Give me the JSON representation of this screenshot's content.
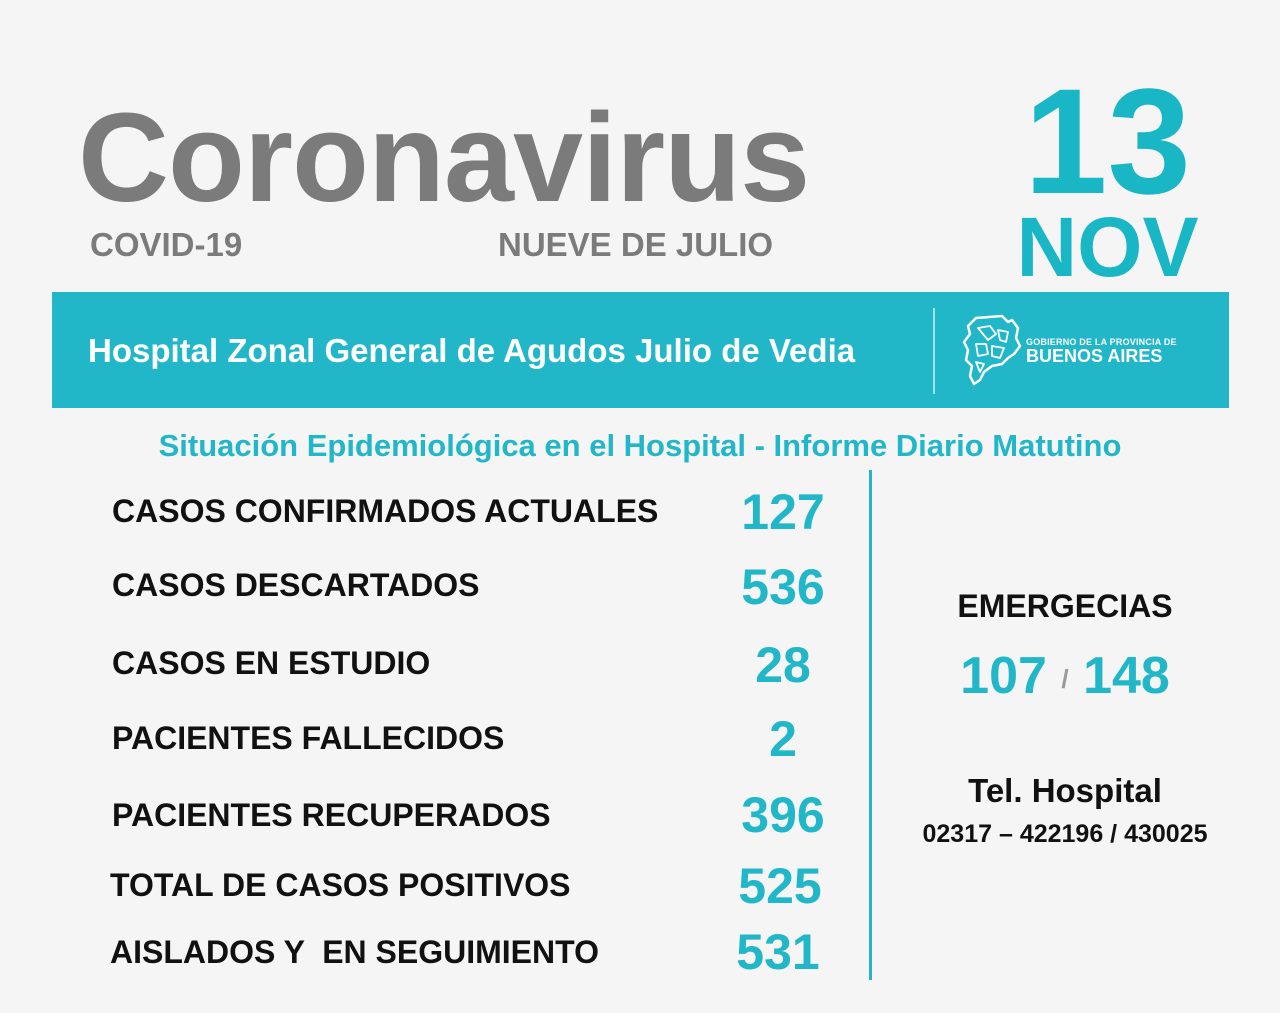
{
  "header": {
    "title": "Coronavirus",
    "covid_label": "COVID-19",
    "city": "NUEVE DE JULIO",
    "day": "13",
    "month": "NOV"
  },
  "banner": {
    "hospital_name": "Hospital Zonal General de Agudos Julio de Vedia",
    "gov_line1": "GOBIERNO DE LA PROVINCIA DE",
    "gov_line2": "BUENOS AIRES",
    "logo_icon": "buenos-aires-province-map-icon"
  },
  "section_title": "Situación Epidemiológica en el Hospital - Informe Diario Matutino",
  "stats": [
    {
      "label": "CASOS CONFIRMADOS ACTUALES",
      "value": "127"
    },
    {
      "label": "CASOS DESCARTADOS",
      "value": "536"
    },
    {
      "label": "CASOS EN ESTUDIO",
      "value": "28"
    },
    {
      "label": "PACIENTES FALLECIDOS",
      "value": "2"
    },
    {
      "label": "PACIENTES RECUPERADOS",
      "value": "396"
    },
    {
      "label": "TOTAL DE CASOS POSITIVOS",
      "value": "525"
    },
    {
      "label": "AISLADOS Y  EN SEGUIMIENTO",
      "value": "531"
    }
  ],
  "emergency": {
    "title": "EMERGECIAS",
    "number1": "107",
    "separator": "/",
    "number2": "148"
  },
  "phone": {
    "title": "Tel. Hospital",
    "numbers": "02317 – 422196 / 430025"
  },
  "colors": {
    "accent": "#22b7c8",
    "gray": "#7b7b7b",
    "text": "#111111",
    "background": "#f5f5f5"
  }
}
